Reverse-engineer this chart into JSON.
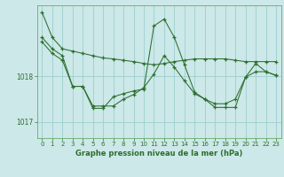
{
  "title": "Graphe pression niveau de la mer (hPa)",
  "background_color": "#cce8e8",
  "line_color": "#2d6e2d",
  "grid_color": "#9ecece",
  "xlim": [
    -0.5,
    23.5
  ],
  "ylim": [
    1016.65,
    1019.55
  ],
  "yticks": [
    1017,
    1018
  ],
  "xticks": [
    0,
    1,
    2,
    3,
    4,
    5,
    6,
    7,
    8,
    9,
    10,
    11,
    12,
    13,
    14,
    15,
    16,
    17,
    18,
    19,
    20,
    21,
    22,
    23
  ],
  "series1_x": [
    0,
    1,
    2,
    3,
    4,
    5,
    6,
    7,
    8,
    9,
    10,
    11,
    12,
    13,
    14,
    15,
    16,
    17,
    18,
    19,
    20,
    21,
    22,
    23
  ],
  "series1_y": [
    1019.4,
    1018.85,
    1018.6,
    1018.55,
    1018.5,
    1018.45,
    1018.4,
    1018.38,
    1018.35,
    1018.32,
    1018.28,
    1018.25,
    1018.28,
    1018.32,
    1018.35,
    1018.38,
    1018.38,
    1018.38,
    1018.38,
    1018.35,
    1018.32,
    1018.32,
    1018.32,
    1018.32
  ],
  "series2_x": [
    0,
    1,
    2,
    3,
    4,
    5,
    6,
    7,
    8,
    9,
    10,
    11,
    12,
    13,
    14,
    15,
    16,
    17,
    18,
    19,
    20,
    21,
    22,
    23
  ],
  "series2_y": [
    1018.85,
    1018.6,
    1018.45,
    1017.78,
    1017.78,
    1017.35,
    1017.35,
    1017.35,
    1017.5,
    1017.6,
    1017.75,
    1018.05,
    1018.45,
    1018.2,
    1017.9,
    1017.62,
    1017.5,
    1017.4,
    1017.4,
    1017.5,
    1017.98,
    1018.1,
    1018.1,
    1018.02
  ],
  "series3_x": [
    0,
    1,
    2,
    3,
    4,
    5,
    6,
    7,
    8,
    9,
    10,
    11,
    12,
    13,
    14,
    15,
    16,
    17,
    18,
    19,
    20,
    21,
    22,
    23
  ],
  "series3_y": [
    1018.75,
    1018.5,
    1018.35,
    1017.78,
    1017.78,
    1017.3,
    1017.3,
    1017.55,
    1017.62,
    1017.68,
    1017.72,
    1019.1,
    1019.25,
    1018.85,
    1018.25,
    1017.65,
    1017.5,
    1017.32,
    1017.32,
    1017.32,
    1017.98,
    1018.28,
    1018.1,
    1018.02
  ]
}
